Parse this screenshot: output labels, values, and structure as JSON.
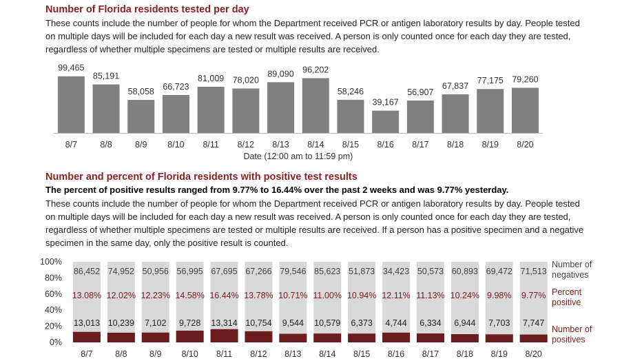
{
  "section1": {
    "title": "Number of Florida residents tested per day",
    "description": "These counts include the number of people for whom the Department received PCR or antigen laboratory results by day. People tested on multiple days will be included for each day a new result was received. A person is only counted once for each day they are tested, regardless of whether multiple specimens are tested or multiple results are received."
  },
  "section2": {
    "title": "Number and percent of Florida residents with positive test results",
    "highlight": "The percent of positive results ranged from 9.77% to 16.44% over the past 2 weeks and was 9.77% yesterday.",
    "description": "These counts include the number of people for whom the Department received PCR or antigen laboratory results by day. People tested on multiple days will be included for each day a new result was received. A person is only counted once for each day they are tested, regardless of whether multiple specimens are tested or multiple results are received. If a person has a positive specimen and a negative specimen in the same day, only the positive result is counted."
  },
  "chart_data": [
    {
      "type": "bar",
      "categories": [
        "8/7",
        "8/8",
        "8/9",
        "8/10",
        "8/11",
        "8/12",
        "8/13",
        "8/14",
        "8/15",
        "8/16",
        "8/17",
        "8/18",
        "8/19",
        "8/20"
      ],
      "values": [
        99465,
        85191,
        58058,
        66723,
        81009,
        78020,
        89090,
        96202,
        58246,
        39167,
        56907,
        67837,
        77175,
        79260
      ],
      "value_labels": [
        "99,465",
        "85,191",
        "58,058",
        "66,723",
        "81,009",
        "78,020",
        "89,090",
        "96,202",
        "58,246",
        "39,167",
        "56,907",
        "67,837",
        "77,175",
        "79,260"
      ],
      "color": "#808080",
      "ylim": [
        0,
        110000
      ],
      "xlabel": "Date (12:00 am to 11:59 pm)"
    },
    {
      "type": "stacked_percent",
      "categories": [
        "8/7",
        "8/8",
        "8/9",
        "8/10",
        "8/11",
        "8/12",
        "8/13",
        "8/14",
        "8/15",
        "8/16",
        "8/17",
        "8/18",
        "8/19",
        "8/20"
      ],
      "ylim": [
        0,
        100
      ],
      "yticks": [
        {
          "value": 0,
          "label": "0%"
        },
        {
          "value": 20,
          "label": "20%"
        },
        {
          "value": 40,
          "label": "40%"
        },
        {
          "value": 60,
          "label": "60%"
        },
        {
          "value": 80,
          "label": "80%"
        },
        {
          "value": 100,
          "label": "100%"
        }
      ],
      "series": [
        {
          "name": "Number of negatives",
          "color": "#d9d9d9",
          "values": [
            86452,
            74952,
            50956,
            56995,
            67695,
            67266,
            79546,
            85623,
            51873,
            34423,
            50573,
            60893,
            69472,
            71513
          ],
          "value_labels": [
            "86,452",
            "74,952",
            "50,956",
            "56,995",
            "67,695",
            "67,266",
            "79,546",
            "85,623",
            "51,873",
            "34,423",
            "50,573",
            "60,893",
            "69,472",
            "71,513"
          ]
        },
        {
          "name": "Percent positive",
          "color": "#6b1c1c",
          "values": [
            13.08,
            12.02,
            12.23,
            14.58,
            16.44,
            13.78,
            10.71,
            11.0,
            10.94,
            12.11,
            11.13,
            10.24,
            9.98,
            9.77
          ],
          "value_labels": [
            "13.08%",
            "12.02%",
            "12.23%",
            "14.58%",
            "16.44%",
            "13.78%",
            "10.71%",
            "11.00%",
            "10.94%",
            "12.11%",
            "11.13%",
            "10.24%",
            "9.98%",
            "9.77%"
          ]
        },
        {
          "name": "Number of positives",
          "color": "#6b1c1c",
          "values": [
            13013,
            10239,
            7102,
            9728,
            13314,
            10754,
            9544,
            10579,
            6373,
            4744,
            6334,
            6944,
            7703,
            7747
          ],
          "value_labels": [
            "13,013",
            "10,239",
            "7,102",
            "9,728",
            "13,314",
            "10,754",
            "9,544",
            "10,579",
            "6,373",
            "4,744",
            "6,334",
            "6,944",
            "7,703",
            "7,747"
          ]
        }
      ]
    }
  ]
}
